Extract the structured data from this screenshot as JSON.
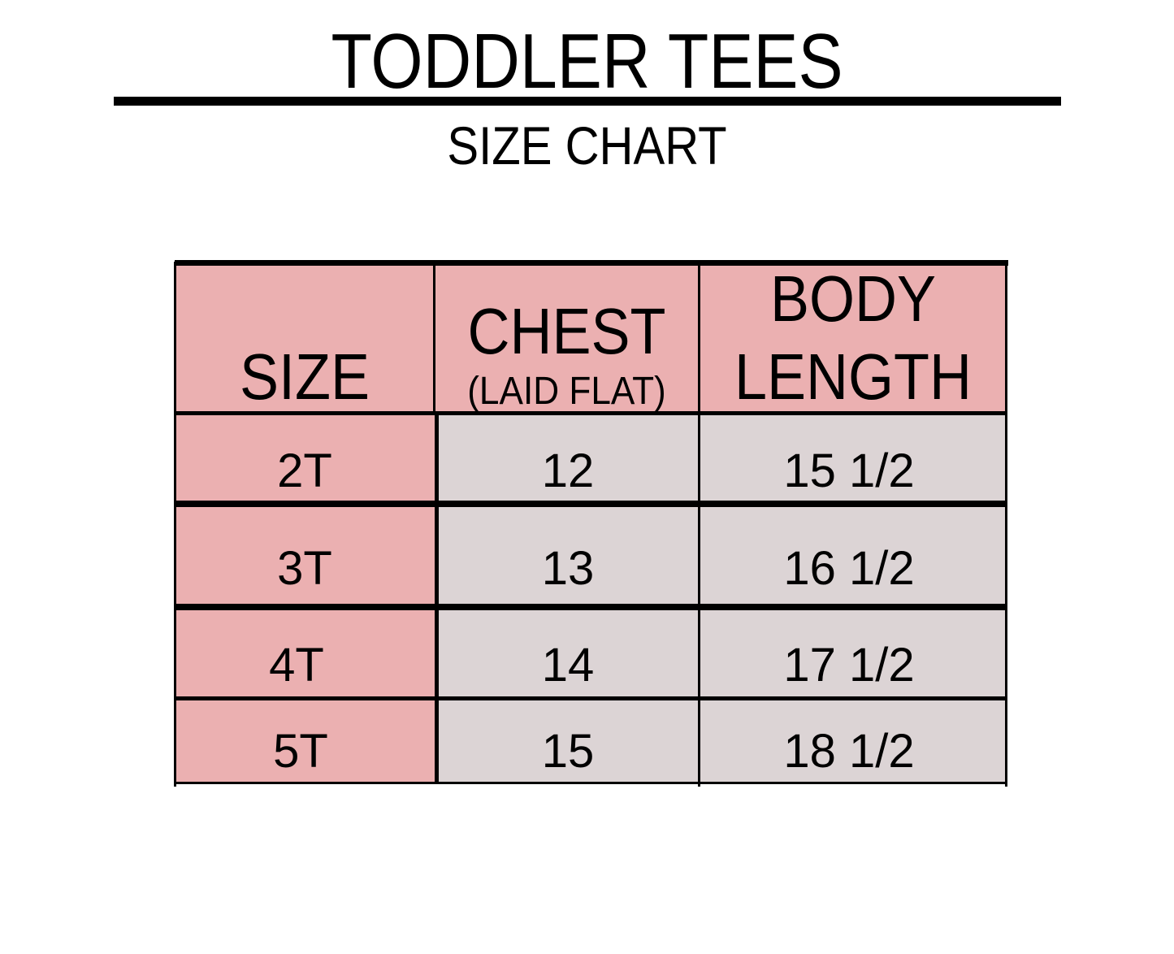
{
  "title": "TODDLER TEES",
  "subtitle": "SIZE CHART",
  "colors": {
    "header": "#ebb0b1",
    "size_column": "#ebb0b1",
    "data_cells": "#dcd4d5",
    "border": "#000000"
  },
  "table": {
    "headers": {
      "size": "SIZE",
      "chest": "CHEST",
      "chest_note": "(LAID FLAT)",
      "body_line1": "BODY",
      "body_line2": "LENGTH"
    },
    "rows": [
      {
        "size": "2T",
        "chest": "12",
        "body_length": "15 1/2"
      },
      {
        "size": "3T",
        "chest": "13",
        "body_length": "16 1/2"
      },
      {
        "size": "4T",
        "chest": "14",
        "body_length": "17 1/2"
      },
      {
        "size": "5T",
        "chest": "15",
        "body_length": "18 1/2"
      }
    ]
  }
}
